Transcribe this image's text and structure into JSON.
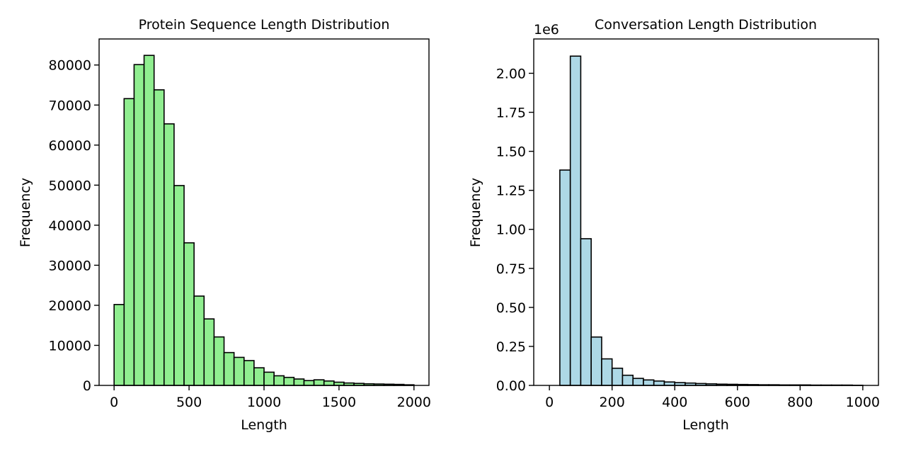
{
  "chart_data": [
    {
      "type": "bar",
      "kind": "histogram",
      "title": "Protein Sequence Length Distribution",
      "xlabel": "Length",
      "ylabel": "Frequency",
      "bar_color": "#90EE90",
      "edge_color": "#000000",
      "xlim": [
        -100,
        2100
      ],
      "ylim": [
        0,
        86500
      ],
      "bin_edges": [
        0,
        66.7,
        133.3,
        200,
        266.7,
        333.3,
        400,
        466.7,
        533.3,
        600,
        666.7,
        733.3,
        800,
        866.7,
        933.3,
        1000,
        1066.7,
        1133.3,
        1200,
        1266.7,
        1333.3,
        1400,
        1466.7,
        1533.3,
        1600,
        1666.7,
        1733.3,
        1800,
        1866.7,
        1933.3,
        2000
      ],
      "values": [
        20200,
        71600,
        80100,
        82400,
        73800,
        65300,
        49900,
        35600,
        22300,
        16600,
        12100,
        8200,
        7000,
        6200,
        4400,
        3300,
        2400,
        2000,
        1600,
        1200,
        1400,
        1100,
        800,
        600,
        500,
        400,
        350,
        300,
        250,
        150
      ],
      "xticks": [
        0,
        500,
        1000,
        1500,
        2000
      ],
      "xtick_labels": [
        "0",
        "500",
        "1000",
        "1500",
        "2000"
      ],
      "yticks": [
        0,
        10000,
        20000,
        30000,
        40000,
        50000,
        60000,
        70000,
        80000
      ],
      "ytick_labels": [
        "0",
        "10000",
        "20000",
        "30000",
        "40000",
        "50000",
        "60000",
        "70000",
        "80000"
      ],
      "offset_text": ""
    },
    {
      "type": "bar",
      "kind": "histogram",
      "title": "Conversation Length Distribution",
      "xlabel": "Length",
      "ylabel": "Frequency",
      "bar_color": "#ADD8E6",
      "edge_color": "#000000",
      "xlim": [
        -50,
        1050
      ],
      "ylim": [
        0,
        2.22
      ],
      "bin_edges": [
        0,
        33.3,
        66.7,
        100,
        133.3,
        166.7,
        200,
        233.3,
        266.7,
        300,
        333.3,
        366.7,
        400,
        433.3,
        466.7,
        500,
        533.3,
        566.7,
        600,
        633.3,
        666.7,
        700,
        733.3,
        766.7,
        800,
        833.3,
        866.7,
        900,
        933.3,
        966.7,
        1000
      ],
      "values": [
        0.0,
        1.38,
        2.11,
        0.94,
        0.31,
        0.17,
        0.11,
        0.065,
        0.045,
        0.035,
        0.028,
        0.022,
        0.018,
        0.015,
        0.012,
        0.01,
        0.008,
        0.007,
        0.006,
        0.005,
        0.004,
        0.004,
        0.003,
        0.003,
        0.003,
        0.002,
        0.002,
        0.002,
        0.002,
        0.001
      ],
      "xticks": [
        0,
        200,
        400,
        600,
        800,
        1000
      ],
      "xtick_labels": [
        "0",
        "200",
        "400",
        "600",
        "800",
        "1000"
      ],
      "yticks": [
        0,
        0.25,
        0.5,
        0.75,
        1.0,
        1.25,
        1.5,
        1.75,
        2.0
      ],
      "ytick_labels": [
        "0.00",
        "0.25",
        "0.50",
        "0.75",
        "1.00",
        "1.25",
        "1.50",
        "1.75",
        "2.00"
      ],
      "offset_text": "1e6"
    }
  ]
}
